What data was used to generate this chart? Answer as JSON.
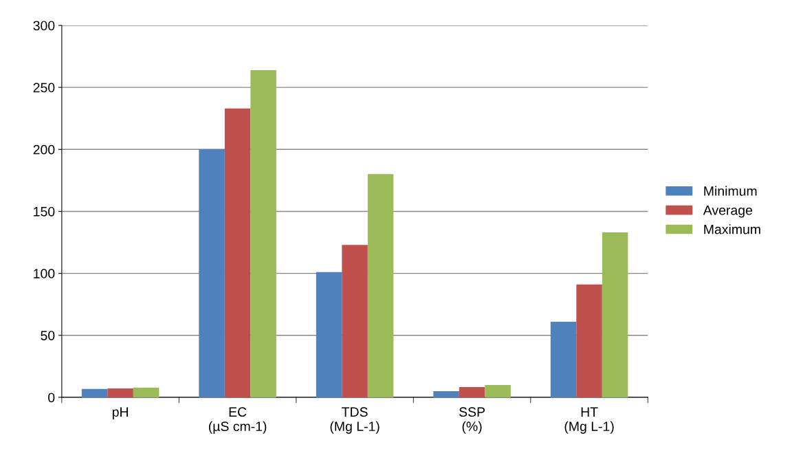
{
  "chart_data": {
    "type": "bar",
    "categories": [
      "pH",
      "EC\n(µS cm-1)",
      "TDS\n(Mg L-1)",
      "SSP\n(%)",
      "HT\n(Mg L-1)"
    ],
    "series": [
      {
        "name": "Minimum",
        "color": "#4f81bd",
        "values": [
          6.8,
          200,
          101,
          5,
          61
        ]
      },
      {
        "name": "Average",
        "color": "#c0504d",
        "values": [
          7.1,
          233,
          123,
          8.3,
          91
        ]
      },
      {
        "name": "Maximum",
        "color": "#9bbb59",
        "values": [
          7.8,
          264,
          180,
          10,
          133
        ]
      }
    ],
    "ylim": [
      0,
      300
    ],
    "yticks": [
      0,
      50,
      100,
      150,
      200,
      250,
      300
    ],
    "grid": "y",
    "legend": "right"
  }
}
